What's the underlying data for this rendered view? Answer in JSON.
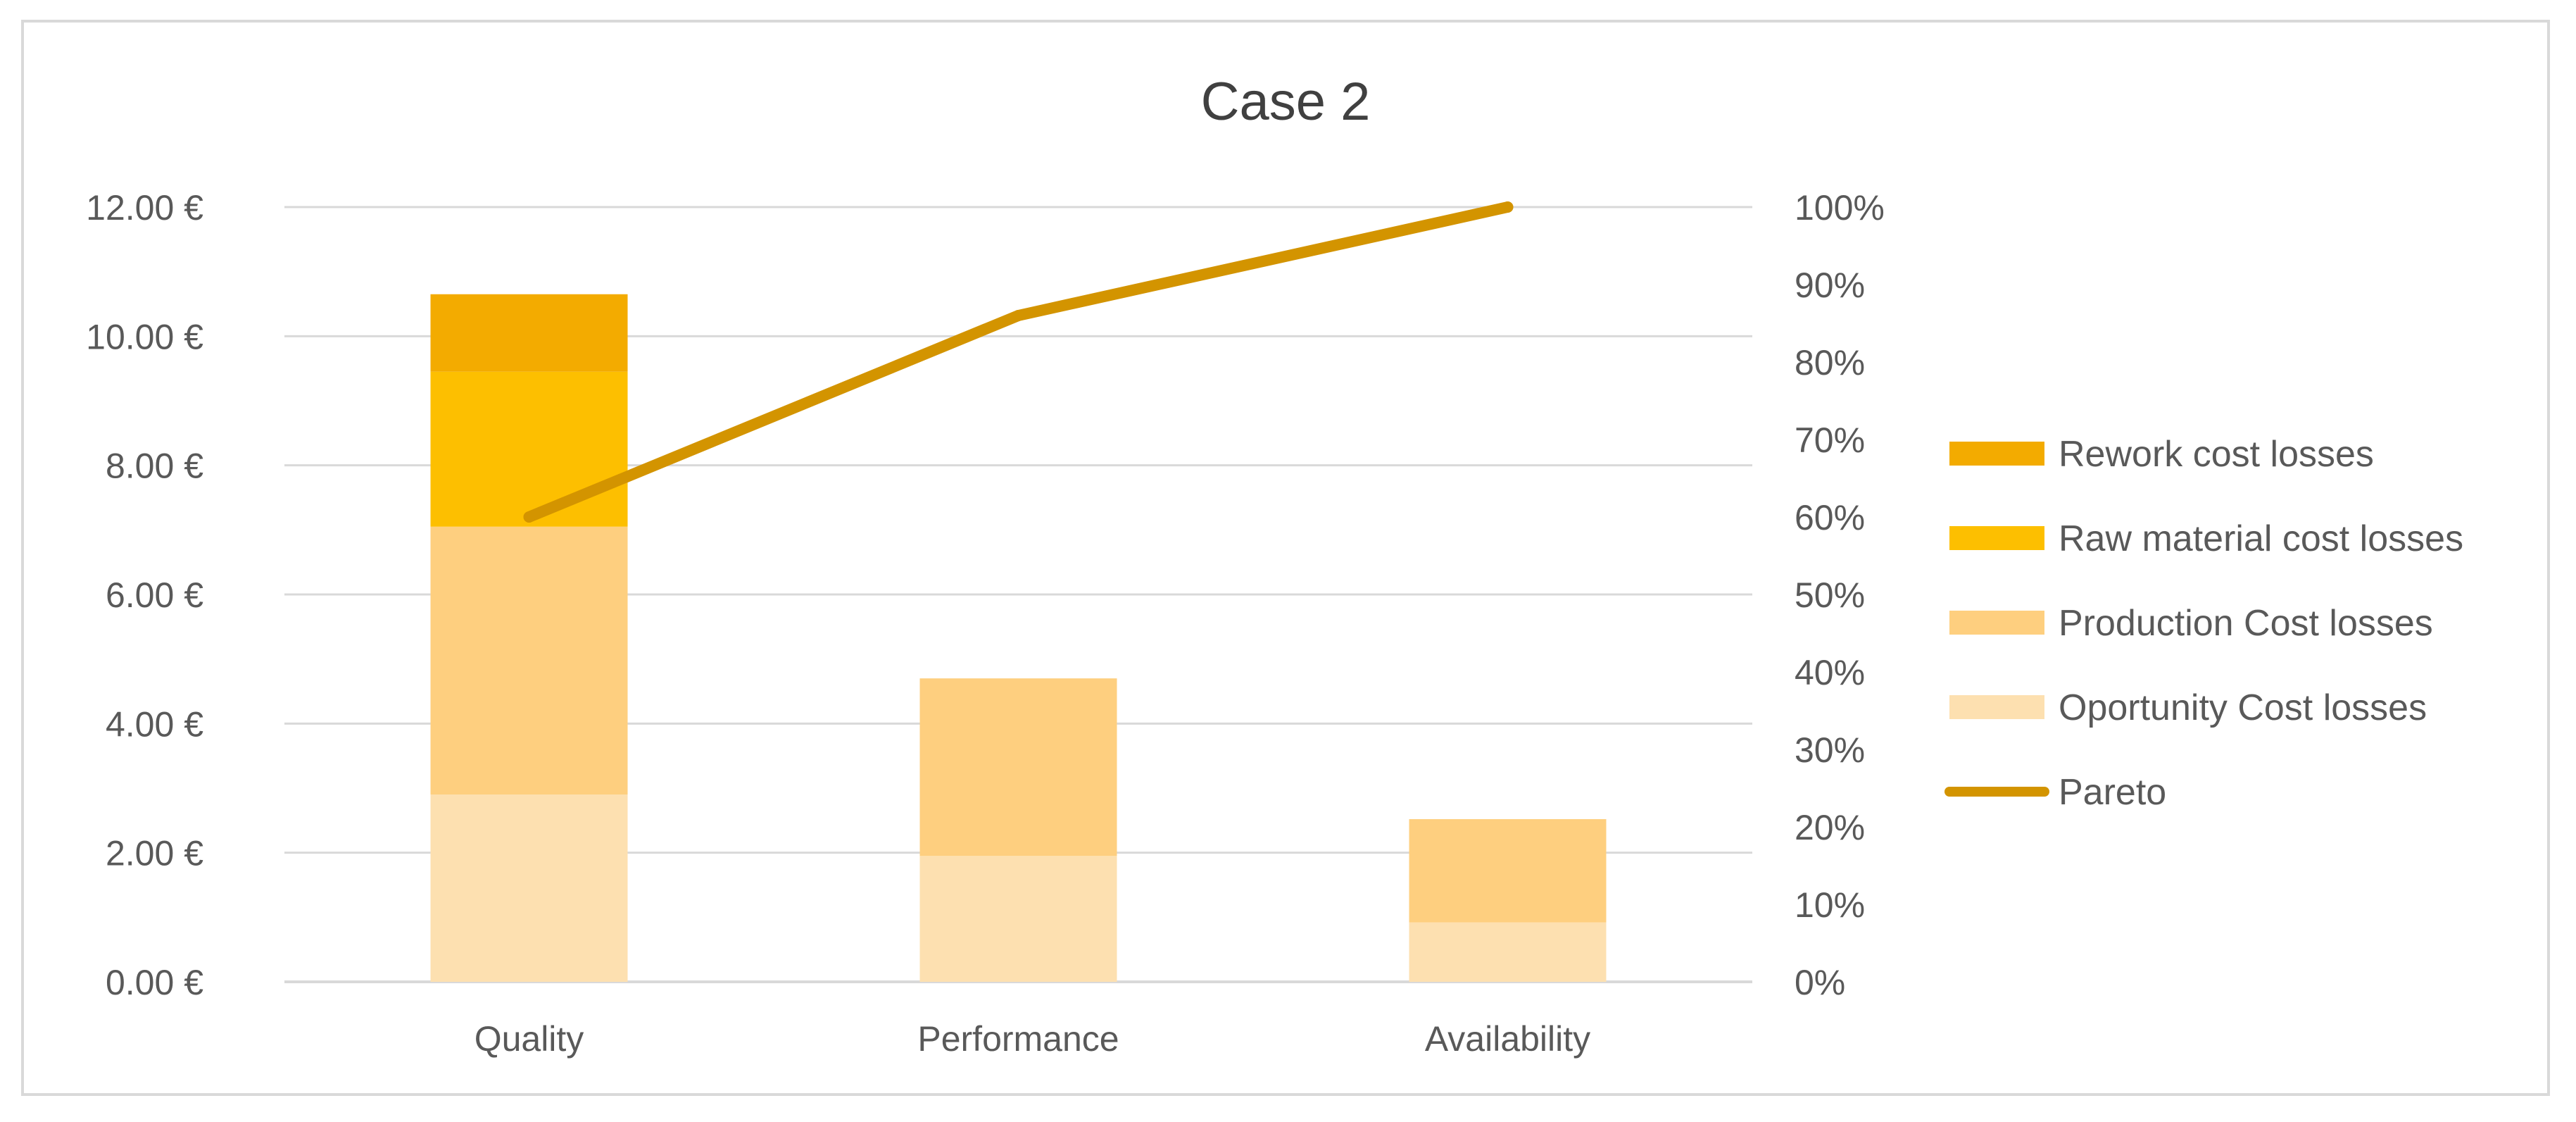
{
  "chart_data": {
    "type": "bar",
    "stacked": true,
    "title": "Case 2",
    "categories": [
      "Quality",
      "Performance",
      "Availability"
    ],
    "series": [
      {
        "name": "Oportunity Cost losses",
        "color": "#fde0b0",
        "values": [
          2.9,
          1.95,
          0.92
        ]
      },
      {
        "name": "Production Cost losses",
        "color": "#fecf7f",
        "values": [
          4.15,
          2.75,
          1.6
        ]
      },
      {
        "name": "Raw material cost losses",
        "color": "#fdbf00",
        "values": [
          2.4,
          0,
          0
        ]
      },
      {
        "name": "Rework cost losses",
        "color": "#f3ab00",
        "values": [
          1.2,
          0,
          0
        ]
      }
    ],
    "line_series": {
      "name": "Pareto",
      "color": "#d39400",
      "axis": "secondary",
      "values": [
        60,
        86,
        100
      ]
    },
    "y_axis": {
      "min": 0,
      "max": 12,
      "ticks": [
        0,
        2,
        4,
        6,
        8,
        10,
        12
      ],
      "tick_labels": [
        "0.00 €",
        "2.00 €",
        "4.00 €",
        "6.00 €",
        "8.00 €",
        "10.00 €",
        "12.00 €"
      ]
    },
    "y2_axis": {
      "min": 0,
      "max": 100,
      "ticks": [
        0,
        10,
        20,
        30,
        40,
        50,
        60,
        70,
        80,
        90,
        100
      ],
      "tick_labels": [
        "0%",
        "10%",
        "20%",
        "30%",
        "40%",
        "50%",
        "60%",
        "70%",
        "80%",
        "90%",
        "100%"
      ]
    },
    "legend": {
      "position": "right",
      "entries": [
        {
          "label": "Rework cost losses",
          "color": "#f3ab00",
          "kind": "bar"
        },
        {
          "label": "Raw material cost losses",
          "color": "#fdbf00",
          "kind": "bar"
        },
        {
          "label": "Production Cost losses",
          "color": "#fecf7f",
          "kind": "bar"
        },
        {
          "label": "Oportunity Cost losses",
          "color": "#fde0b0",
          "kind": "bar"
        },
        {
          "label": "Pareto",
          "color": "#d39400",
          "kind": "line"
        }
      ]
    },
    "grid": true,
    "colors": {
      "text": "#595959",
      "title": "#404040",
      "grid": "#d9d9d9"
    }
  }
}
